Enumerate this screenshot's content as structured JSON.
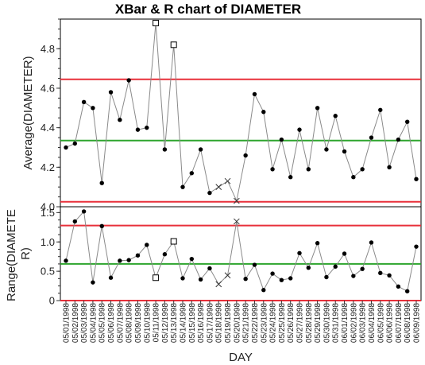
{
  "chart_data": {
    "type": "line",
    "title": "XBar & R chart of DIAMETER",
    "xlabel": "DAY",
    "colors": {
      "limit_line": "#e8303a",
      "center_line": "#2ea52e",
      "data_line": "#8a8a8a",
      "point": "#000000"
    },
    "categories": [
      "05/01/1998",
      "05/02/1998",
      "05/03/1998",
      "05/04/1998",
      "05/05/1998",
      "05/06/1998",
      "05/07/1998",
      "05/08/1998",
      "05/09/1998",
      "05/10/1998",
      "05/11/1998",
      "05/12/1998",
      "05/13/1998",
      "05/14/1998",
      "05/15/1998",
      "05/16/1998",
      "05/17/1998",
      "05/18/1998",
      "05/19/1998",
      "05/20/1998",
      "05/21/1998",
      "05/22/1998",
      "05/23/1998",
      "05/24/1998",
      "05/25/1998",
      "05/26/1998",
      "05/27/1998",
      "05/28/1998",
      "05/29/1998",
      "05/30/1998",
      "05/31/1998",
      "06/01/1998",
      "06/02/1998",
      "06/03/1998",
      "06/04/1998",
      "06/05/1998",
      "06/06/1998",
      "06/07/1998",
      "06/08/1998",
      "06/09/1998"
    ],
    "panels": [
      {
        "ylabel": "Average(DIAMETER)",
        "ylim": [
          4.0,
          4.95
        ],
        "yticks": [
          4.0,
          4.2,
          4.4,
          4.6,
          4.8
        ],
        "ucl": 4.645,
        "center": 4.335,
        "lcl": 4.025,
        "values": [
          4.3,
          4.32,
          4.53,
          4.5,
          4.12,
          4.58,
          4.44,
          4.64,
          4.39,
          4.4,
          4.93,
          4.29,
          4.82,
          4.1,
          4.17,
          4.29,
          4.07,
          4.1,
          4.13,
          4.03,
          4.26,
          4.57,
          4.48,
          4.19,
          4.34,
          4.15,
          4.39,
          4.19,
          4.5,
          4.29,
          4.46,
          4.28,
          4.15,
          4.19,
          4.35,
          4.49,
          4.2,
          4.34,
          4.43,
          4.14
        ],
        "markers": [
          "dot",
          "dot",
          "dot",
          "dot",
          "dot",
          "dot",
          "dot",
          "dot",
          "dot",
          "dot",
          "square",
          "dot",
          "square",
          "dot",
          "dot",
          "dot",
          "dot",
          "x",
          "x",
          "x",
          "dot",
          "dot",
          "dot",
          "dot",
          "dot",
          "dot",
          "dot",
          "dot",
          "dot",
          "dot",
          "dot",
          "dot",
          "dot",
          "dot",
          "dot",
          "dot",
          "dot",
          "dot",
          "dot",
          "dot"
        ]
      },
      {
        "ylabel": "Range(DIAMETE R)",
        "ylabel_lines": [
          "Range(DIAMETE",
          "R)"
        ],
        "ylim": [
          0,
          1.6
        ],
        "yticks": [
          0,
          0.5,
          1.0,
          1.5
        ],
        "ytick_labels": [
          "0",
          "0.5",
          "1.0",
          "1.5"
        ],
        "ucl": 1.28,
        "center": 0.625,
        "lcl": 0,
        "values": [
          0.68,
          1.35,
          1.52,
          0.31,
          1.27,
          0.39,
          0.68,
          0.69,
          0.77,
          0.95,
          0.39,
          0.79,
          1.01,
          0.38,
          0.71,
          0.36,
          0.55,
          0.28,
          0.43,
          1.35,
          0.37,
          0.61,
          0.18,
          0.46,
          0.35,
          0.38,
          0.81,
          0.56,
          0.98,
          0.4,
          0.58,
          0.8,
          0.42,
          0.54,
          0.99,
          0.47,
          0.43,
          0.24,
          0.16,
          0.92
        ],
        "markers": [
          "dot",
          "dot",
          "dot",
          "dot",
          "dot",
          "dot",
          "dot",
          "dot",
          "dot",
          "dot",
          "square",
          "dot",
          "square",
          "dot",
          "dot",
          "dot",
          "dot",
          "x",
          "x",
          "x",
          "dot",
          "dot",
          "dot",
          "dot",
          "dot",
          "dot",
          "dot",
          "dot",
          "dot",
          "dot",
          "dot",
          "dot",
          "dot",
          "dot",
          "dot",
          "dot",
          "dot",
          "dot",
          "dot",
          "dot"
        ]
      }
    ]
  }
}
